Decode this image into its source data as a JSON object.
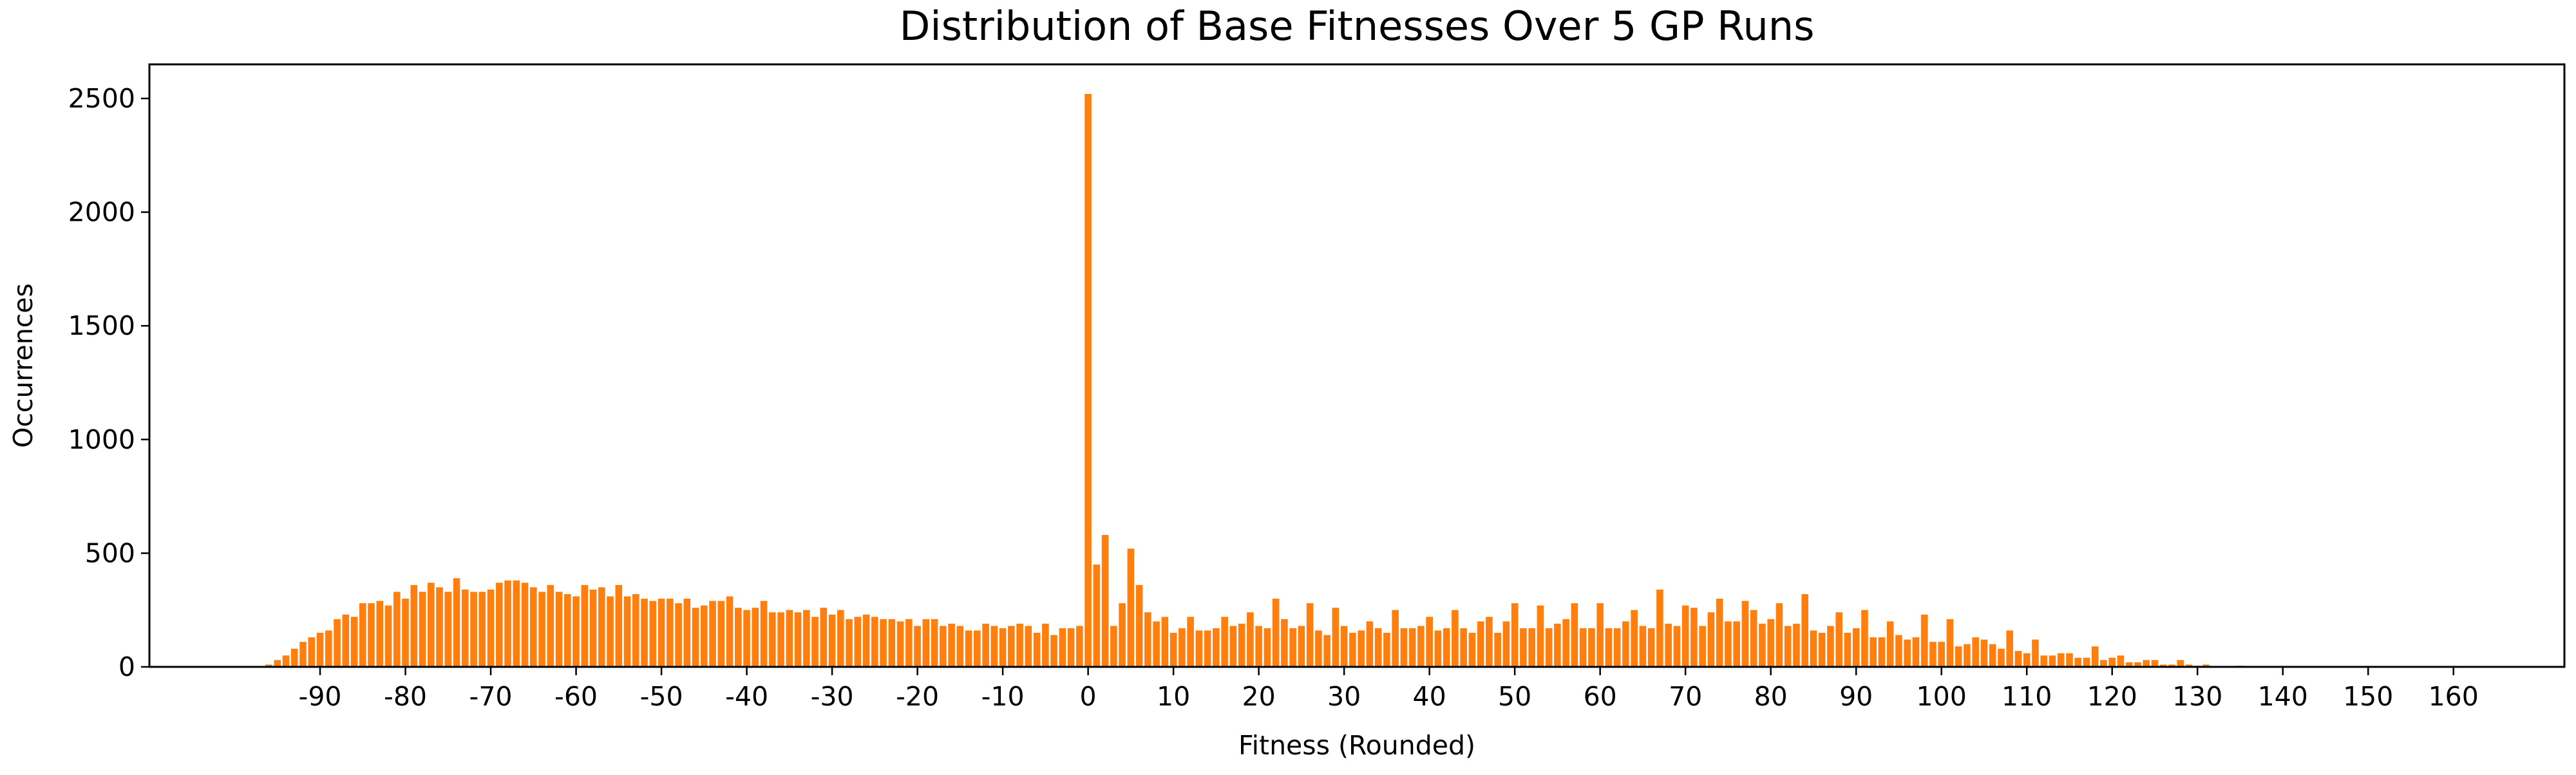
{
  "chart_data": {
    "type": "bar",
    "title": "Distribution of Base Fitnesses Over 5 GP Runs",
    "xlabel": "Fitness (Rounded)",
    "ylabel": "Occurrences",
    "color": "#ff7f0e",
    "x": [
      -96,
      -95,
      -94,
      -93,
      -92,
      -91,
      -90,
      -89,
      -88,
      -87,
      -86,
      -85,
      -84,
      -83,
      -82,
      -81,
      -80,
      -79,
      -78,
      -77,
      -76,
      -75,
      -74,
      -73,
      -72,
      -71,
      -70,
      -69,
      -68,
      -67,
      -66,
      -65,
      -64,
      -63,
      -62,
      -61,
      -60,
      -59,
      -58,
      -57,
      -56,
      -55,
      -54,
      -53,
      -52,
      -51,
      -50,
      -49,
      -48,
      -47,
      -46,
      -45,
      -44,
      -43,
      -42,
      -41,
      -40,
      -39,
      -38,
      -37,
      -36,
      -35,
      -34,
      -33,
      -32,
      -31,
      -30,
      -29,
      -28,
      -27,
      -26,
      -25,
      -24,
      -23,
      -22,
      -21,
      -20,
      -19,
      -18,
      -17,
      -16,
      -15,
      -14,
      -13,
      -12,
      -11,
      -10,
      -9,
      -8,
      -7,
      -6,
      -5,
      -4,
      -3,
      -2,
      -1,
      0,
      1,
      2,
      3,
      4,
      5,
      6,
      7,
      8,
      9,
      10,
      11,
      12,
      13,
      14,
      15,
      16,
      17,
      18,
      19,
      20,
      21,
      22,
      23,
      24,
      25,
      26,
      27,
      28,
      29,
      30,
      31,
      32,
      33,
      34,
      35,
      36,
      37,
      38,
      39,
      40,
      41,
      42,
      43,
      44,
      45,
      46,
      47,
      48,
      49,
      50,
      51,
      52,
      53,
      54,
      55,
      56,
      57,
      58,
      59,
      60,
      61,
      62,
      63,
      64,
      65,
      66,
      67,
      68,
      69,
      70,
      71,
      72,
      73,
      74,
      75,
      76,
      77,
      78,
      79,
      80,
      81,
      82,
      83,
      84,
      85,
      86,
      87,
      88,
      89,
      90,
      91,
      92,
      93,
      94,
      95,
      96,
      97,
      98,
      99,
      100,
      101,
      102,
      103,
      104,
      105,
      106,
      107,
      108,
      109,
      110,
      111,
      112,
      113,
      114,
      115,
      116,
      117,
      118,
      119,
      120,
      121,
      122,
      123,
      124,
      125,
      126,
      127,
      128,
      129,
      130,
      131,
      132,
      133,
      134,
      135,
      136,
      137,
      138,
      139,
      140
    ],
    "values": [
      10,
      30,
      50,
      80,
      110,
      130,
      150,
      160,
      210,
      230,
      220,
      280,
      280,
      290,
      270,
      330,
      300,
      360,
      330,
      370,
      350,
      330,
      390,
      340,
      330,
      330,
      340,
      370,
      380,
      380,
      370,
      350,
      330,
      360,
      330,
      320,
      310,
      360,
      340,
      350,
      310,
      360,
      310,
      320,
      300,
      290,
      300,
      300,
      280,
      300,
      260,
      270,
      290,
      290,
      310,
      260,
      250,
      260,
      290,
      240,
      240,
      250,
      240,
      250,
      220,
      260,
      230,
      250,
      210,
      220,
      230,
      220,
      210,
      210,
      200,
      210,
      180,
      210,
      210,
      180,
      190,
      180,
      160,
      160,
      190,
      180,
      170,
      180,
      190,
      180,
      150,
      190,
      140,
      170,
      170,
      180,
      2520,
      450,
      580,
      180,
      280,
      520,
      360,
      240,
      200,
      220,
      150,
      170,
      220,
      160,
      160,
      170,
      220,
      180,
      190,
      240,
      180,
      170,
      300,
      210,
      170,
      180,
      280,
      160,
      140,
      260,
      180,
      150,
      160,
      200,
      170,
      150,
      250,
      170,
      170,
      180,
      220,
      160,
      170,
      250,
      170,
      150,
      200,
      220,
      150,
      200,
      280,
      170,
      170,
      270,
      170,
      190,
      210,
      280,
      170,
      170,
      280,
      170,
      170,
      200,
      250,
      180,
      170,
      340,
      190,
      180,
      270,
      260,
      180,
      240,
      300,
      200,
      200,
      290,
      250,
      190,
      210,
      280,
      180,
      190,
      320,
      160,
      150,
      180,
      240,
      150,
      170,
      250,
      130,
      130,
      200,
      140,
      120,
      130,
      230,
      110,
      110,
      210,
      90,
      100,
      130,
      120,
      100,
      80,
      160,
      70,
      60,
      120,
      50,
      50,
      60,
      60,
      40,
      40,
      90,
      30,
      40,
      50,
      20,
      20,
      30,
      30,
      10,
      10,
      30,
      10,
      5,
      10,
      3,
      2,
      2,
      5,
      2,
      2,
      3,
      1,
      2
    ],
    "xlim": [
      -110,
      173
    ],
    "xticks": [
      -90,
      -80,
      -70,
      -60,
      -50,
      -40,
      -30,
      -20,
      -10,
      0,
      10,
      20,
      30,
      40,
      50,
      60,
      70,
      80,
      90,
      100,
      110,
      120,
      130,
      140,
      150,
      160
    ],
    "ylim": [
      0,
      2650
    ],
    "yticks": [
      0,
      500,
      1000,
      1500,
      2000,
      2500
    ]
  }
}
